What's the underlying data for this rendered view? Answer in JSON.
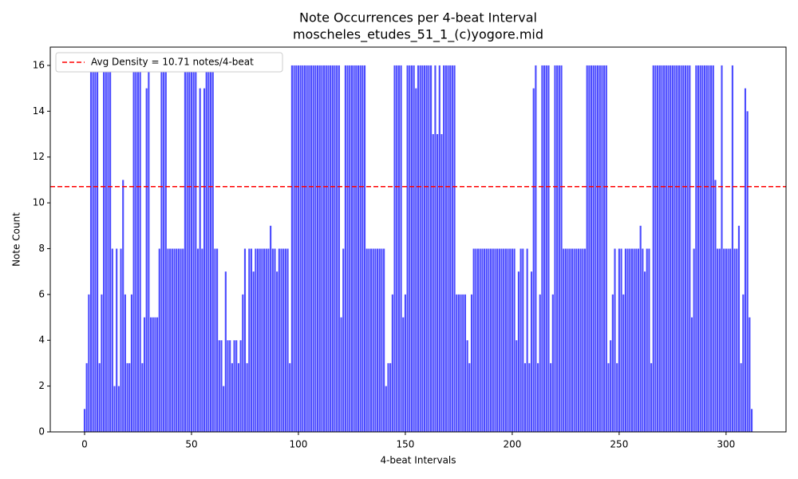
{
  "chart_data": {
    "type": "bar",
    "title": "Note Occurrences per 4-beat Interval",
    "subtitle": "moscheles_etudes_51_1_(c)yogore.mid",
    "x_label": "4-beat Intervals",
    "y_label": "Note Count",
    "color": "#4c4cff",
    "x": [
      0,
      1,
      2,
      3,
      4,
      5,
      6,
      7,
      8,
      9,
      10,
      11,
      12,
      13,
      14,
      15,
      16,
      17,
      18,
      19,
      20,
      21,
      22,
      23,
      24,
      25,
      26,
      27,
      28,
      29,
      30,
      31,
      32,
      33,
      34,
      35,
      36,
      37,
      38,
      39,
      40,
      41,
      42,
      43,
      44,
      45,
      46,
      47,
      48,
      49,
      50,
      51,
      52,
      53,
      54,
      55,
      56,
      57,
      58,
      59,
      60,
      61,
      62,
      63,
      64,
      65,
      66,
      67,
      68,
      69,
      70,
      71,
      72,
      73,
      74,
      75,
      76,
      77,
      78,
      79,
      80,
      81,
      82,
      83,
      84,
      85,
      86,
      87,
      88,
      89,
      90,
      91,
      92,
      93,
      94,
      95,
      96,
      97,
      98,
      99,
      100,
      101,
      102,
      103,
      104,
      105,
      106,
      107,
      108,
      109,
      110,
      111,
      112,
      113,
      114,
      115,
      116,
      117,
      118,
      119,
      120,
      121,
      122,
      123,
      124,
      125,
      126,
      127,
      128,
      129,
      130,
      131,
      132,
      133,
      134,
      135,
      136,
      137,
      138,
      139,
      140,
      141,
      142,
      143,
      144,
      145,
      146,
      147,
      148,
      149,
      150,
      151,
      152,
      153,
      154,
      155,
      156,
      157,
      158,
      159,
      160,
      161,
      162,
      163,
      164,
      165,
      166,
      167,
      168,
      169,
      170,
      171,
      172,
      173,
      174,
      175,
      176,
      177,
      178,
      179,
      180,
      181,
      182,
      183,
      184,
      185,
      186,
      187,
      188,
      189,
      190,
      191,
      192,
      193,
      194,
      195,
      196,
      197,
      198,
      199,
      200,
      201,
      202,
      203,
      204,
      205,
      206,
      207,
      208,
      209,
      210,
      211,
      212,
      213,
      214,
      215,
      216,
      217,
      218,
      219,
      220,
      221,
      222,
      223,
      224,
      225,
      226,
      227,
      228,
      229,
      230,
      231,
      232,
      233,
      234,
      235,
      236,
      237,
      238,
      239,
      240,
      241,
      242,
      243,
      244,
      245,
      246,
      247,
      248,
      249,
      250,
      251,
      252,
      253,
      254,
      255,
      256,
      257,
      258,
      259,
      260,
      261,
      262,
      263,
      264,
      265,
      266,
      267,
      268,
      269,
      270,
      271,
      272,
      273,
      274,
      275,
      276,
      277,
      278,
      279,
      280,
      281,
      282,
      283,
      284,
      285,
      286,
      287,
      288,
      289,
      290,
      291,
      292,
      293,
      294,
      295,
      296,
      297,
      298,
      299,
      300,
      301,
      302,
      303,
      304,
      305,
      306,
      307,
      308,
      309,
      310,
      311,
      312
    ],
    "values": [
      1,
      3,
      6,
      16,
      16,
      16,
      16,
      3,
      6,
      16,
      16,
      16,
      16,
      8,
      2,
      8,
      2,
      8,
      11,
      6,
      3,
      3,
      6,
      16,
      16,
      16,
      16,
      3,
      5,
      15,
      16,
      5,
      5,
      5,
      5,
      8,
      16,
      16,
      16,
      8,
      8,
      8,
      8,
      8,
      8,
      8,
      8,
      16,
      16,
      16,
      16,
      16,
      16,
      8,
      15,
      8,
      15,
      16,
      16,
      16,
      16,
      8,
      8,
      4,
      4,
      2,
      7,
      4,
      4,
      3,
      4,
      4,
      3,
      4,
      6,
      8,
      3,
      8,
      8,
      7,
      8,
      8,
      8,
      8,
      8,
      8,
      8,
      9,
      8,
      8,
      7,
      8,
      8,
      8,
      8,
      8,
      3,
      16,
      16,
      16,
      16,
      16,
      16,
      16,
      16,
      16,
      16,
      16,
      16,
      16,
      16,
      16,
      16,
      16,
      16,
      16,
      16,
      16,
      16,
      16,
      5,
      8,
      16,
      16,
      16,
      16,
      16,
      16,
      16,
      16,
      16,
      16,
      8,
      8,
      8,
      8,
      8,
      8,
      8,
      8,
      8,
      2,
      3,
      3,
      6,
      16,
      16,
      16,
      16,
      5,
      6,
      16,
      16,
      16,
      16,
      15,
      16,
      16,
      16,
      16,
      16,
      16,
      16,
      13,
      16,
      13,
      16,
      13,
      16,
      16,
      16,
      16,
      16,
      16,
      6,
      6,
      6,
      6,
      6,
      4,
      3,
      6,
      8,
      8,
      8,
      8,
      8,
      8,
      8,
      8,
      8,
      8,
      8,
      8,
      8,
      8,
      8,
      8,
      8,
      8,
      8,
      8,
      4,
      7,
      8,
      8,
      3,
      8,
      3,
      7,
      15,
      16,
      3,
      6,
      16,
      16,
      16,
      16,
      3,
      6,
      16,
      16,
      16,
      16,
      8,
      8,
      8,
      8,
      8,
      8,
      8,
      8,
      8,
      8,
      8,
      16,
      16,
      16,
      16,
      16,
      16,
      16,
      16,
      16,
      16,
      3,
      4,
      6,
      8,
      3,
      8,
      8,
      6,
      8,
      8,
      8,
      8,
      8,
      8,
      8,
      9,
      8,
      7,
      8,
      8,
      3,
      16,
      16,
      16,
      16,
      16,
      16,
      16,
      16,
      16,
      16,
      16,
      16,
      16,
      16,
      16,
      16,
      16,
      16,
      5,
      8,
      16,
      16,
      16,
      16,
      16,
      16,
      16,
      16,
      16,
      11,
      8,
      8,
      16,
      8,
      8,
      8,
      8,
      16,
      8,
      8,
      9,
      3,
      6,
      15,
      14,
      5,
      1
    ],
    "xlim": [
      -16.04,
      328.04
    ],
    "ylim": [
      0,
      16.8
    ],
    "xticks": [
      0,
      50,
      100,
      150,
      200,
      250,
      300
    ],
    "yticks": [
      0,
      2,
      4,
      6,
      8,
      10,
      12,
      14,
      16
    ],
    "avg_line": {
      "label": "Avg Density = 10.71 notes/4-beat",
      "value": 10.71,
      "color": "#ff0000"
    },
    "legend": "upper left"
  }
}
